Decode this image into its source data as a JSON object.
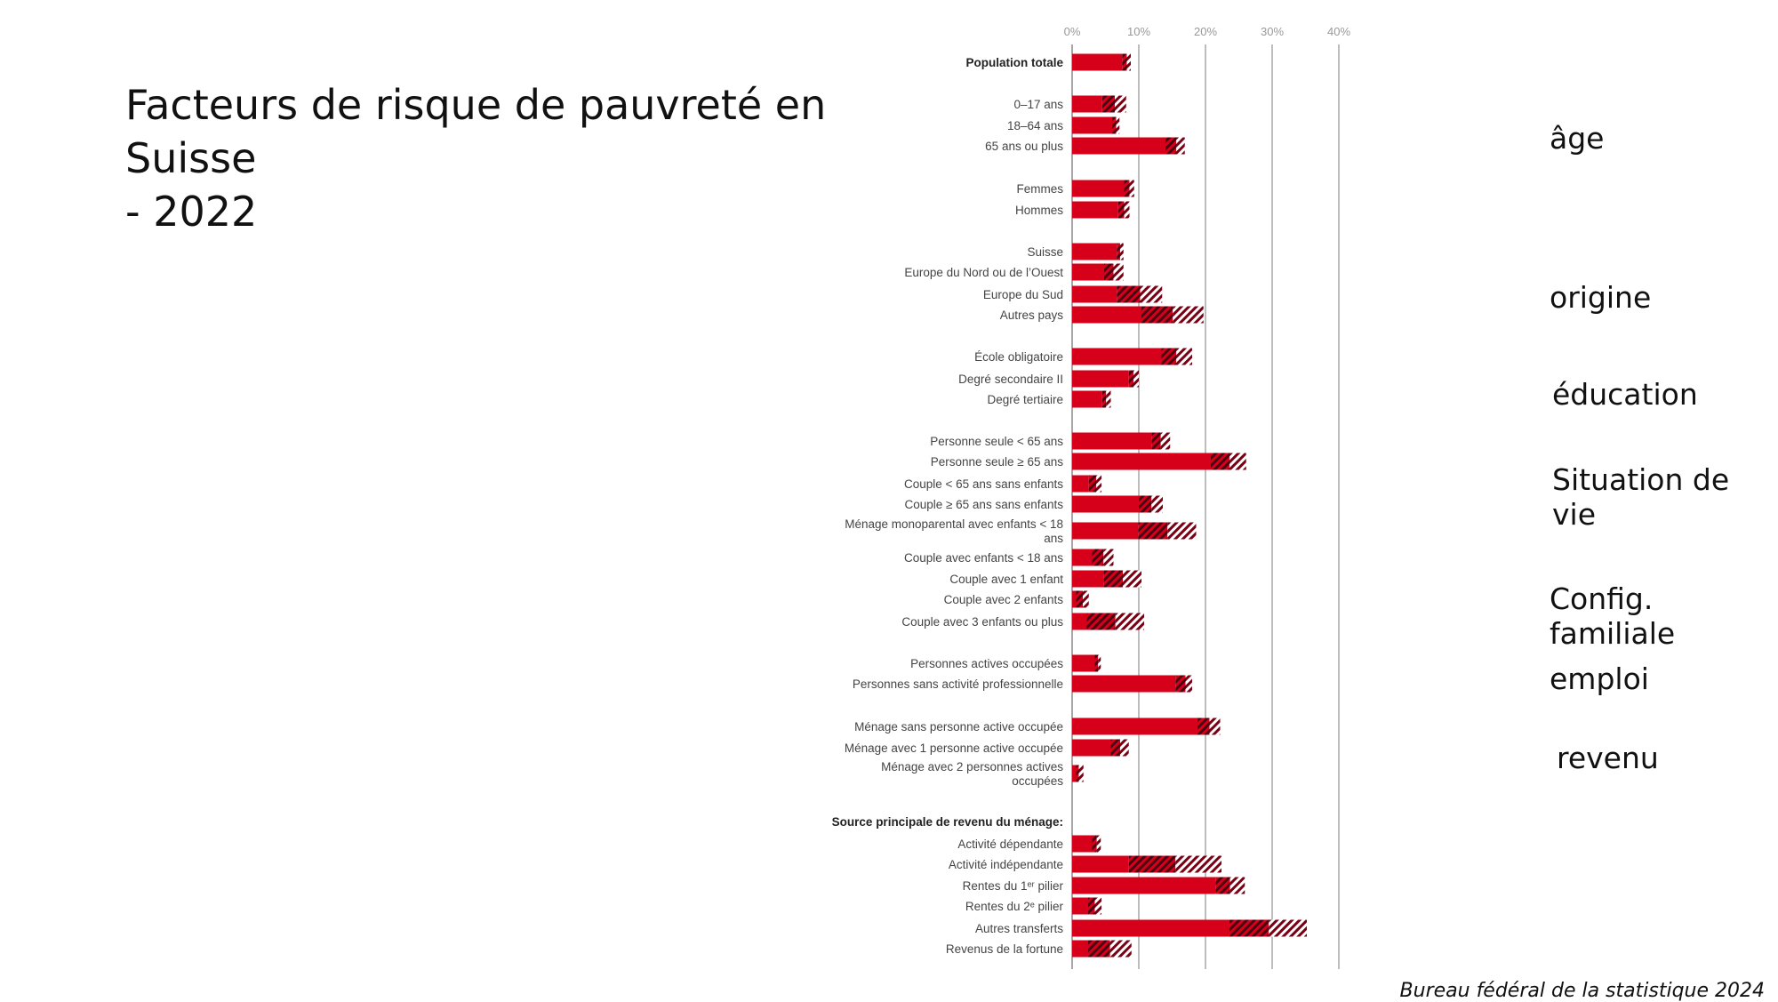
{
  "title": {
    "line1": "Facteurs de risque de pauvreté en Suisse",
    "line2": "- 2022"
  },
  "side_labels": {
    "age": "âge",
    "origine": "origine",
    "education": "éducation",
    "situation": "Situation de vie",
    "config": "Config. familiale",
    "emploi": "emploi",
    "revenu": "revenu"
  },
  "footer": "Bureau fédéral de la statistique 2024",
  "colors": {
    "bar": "#d7001b",
    "hatch_dark": "#4a0010",
    "hatch_light_bg": "#ffffff",
    "grid": "#9a9a9a",
    "label": "#444444"
  },
  "chart_data": {
    "type": "bar",
    "orientation": "horizontal",
    "encoding": "solid = lower bound of confidence interval; dark hatch = lower bound to estimate; light hatch = estimate to upper bound",
    "xlim": [
      0,
      40
    ],
    "x_ticks": [
      "0%",
      "10%",
      "20%",
      "30%",
      "40%"
    ],
    "x_tick_values": [
      0,
      10,
      20,
      30,
      40
    ],
    "grid": true,
    "rows": [
      {
        "label": "Population totale",
        "bold": true,
        "lower": 7.5,
        "estimate": 8.2,
        "upper": 8.8
      },
      {
        "label": "0–17 ans",
        "lower": 4.5,
        "estimate": 6.4,
        "upper": 8.1
      },
      {
        "label": "18–64 ans",
        "lower": 6.0,
        "estimate": 6.6,
        "upper": 7.1
      },
      {
        "label": "65 ans ou plus",
        "lower": 14.0,
        "estimate": 15.6,
        "upper": 16.9
      },
      {
        "label": "Femmes",
        "lower": 7.8,
        "estimate": 8.6,
        "upper": 9.3
      },
      {
        "label": "Hommes",
        "lower": 6.9,
        "estimate": 7.8,
        "upper": 8.6
      },
      {
        "label": "Suisse",
        "lower": 6.7,
        "estimate": 7.2,
        "upper": 7.7
      },
      {
        "label": "Europe du Nord ou de l’Ouest",
        "lower": 4.8,
        "estimate": 6.2,
        "upper": 7.7
      },
      {
        "label": "Europe du Sud",
        "lower": 6.7,
        "estimate": 10.2,
        "upper": 13.5
      },
      {
        "label": "Autres pays",
        "lower": 10.4,
        "estimate": 15.1,
        "upper": 19.7
      },
      {
        "label": "École obligatoire",
        "lower": 13.4,
        "estimate": 15.6,
        "upper": 18.0
      },
      {
        "label": "Degré secondaire II",
        "lower": 8.5,
        "estimate": 9.2,
        "upper": 10.0
      },
      {
        "label": "Degré tertiaire",
        "lower": 4.5,
        "estimate": 5.1,
        "upper": 5.8
      },
      {
        "label": "Personne seule < 65 ans",
        "lower": 11.9,
        "estimate": 13.3,
        "upper": 14.7
      },
      {
        "label": "Personne seule ≥ 65 ans",
        "lower": 20.8,
        "estimate": 23.6,
        "upper": 26.1
      },
      {
        "label": "Couple < 65 ans sans enfants",
        "lower": 2.5,
        "estimate": 3.6,
        "upper": 4.4
      },
      {
        "label": "Couple ≥ 65 ans sans enfants",
        "lower": 10.0,
        "estimate": 11.9,
        "upper": 13.6
      },
      {
        "label": [
          "Ménage monoparental avec enfants < 18",
          "ans"
        ],
        "lower": 9.9,
        "estimate": 14.3,
        "upper": 18.6
      },
      {
        "label": "Couple avec enfants < 18 ans",
        "lower": 3.0,
        "estimate": 4.7,
        "upper": 6.2
      },
      {
        "label": "Couple avec 1 enfant",
        "lower": 4.7,
        "estimate": 7.6,
        "upper": 10.4
      },
      {
        "label": "Couple avec 2 enfants",
        "lower": 0.6,
        "estimate": 1.6,
        "upper": 2.5
      },
      {
        "label": "Couple avec 3 enfants ou plus",
        "lower": 2.2,
        "estimate": 6.5,
        "upper": 10.8
      },
      {
        "label": "Personnes actives occupées",
        "lower": 3.4,
        "estimate": 3.9,
        "upper": 4.3
      },
      {
        "label": "Personnes sans activité professionnelle",
        "lower": 15.5,
        "estimate": 17.0,
        "upper": 18.0
      },
      {
        "label": "Ménage sans personne active occupée",
        "lower": 18.8,
        "estimate": 20.6,
        "upper": 22.2
      },
      {
        "label": "Ménage avec 1 personne active occupée",
        "lower": 5.8,
        "estimate": 7.2,
        "upper": 8.5
      },
      {
        "label": [
          "Ménage avec 2 personnes actives",
          "occupées"
        ],
        "lower": 0.6,
        "estimate": 1.0,
        "upper": 1.7
      },
      {
        "label": "Source principale de revenu du ménage:",
        "bold": true,
        "header": true
      },
      {
        "label": "Activité dépendante",
        "lower": 3.0,
        "estimate": 3.7,
        "upper": 4.3
      },
      {
        "label": "Activité indépendante",
        "lower": 8.5,
        "estimate": 15.5,
        "upper": 22.4
      },
      {
        "label": "Rentes du 1ᵉʳ pilier",
        "lower": 21.5,
        "estimate": 23.7,
        "upper": 25.9
      },
      {
        "label": "Rentes du 2ᵉ pilier",
        "lower": 2.4,
        "estimate": 3.4,
        "upper": 4.4
      },
      {
        "label": "Autres transferts",
        "lower": 23.6,
        "estimate": 29.5,
        "upper": 35.2
      },
      {
        "label": "Revenus de la fortune",
        "lower": 2.4,
        "estimate": 5.7,
        "upper": 8.9
      }
    ]
  }
}
